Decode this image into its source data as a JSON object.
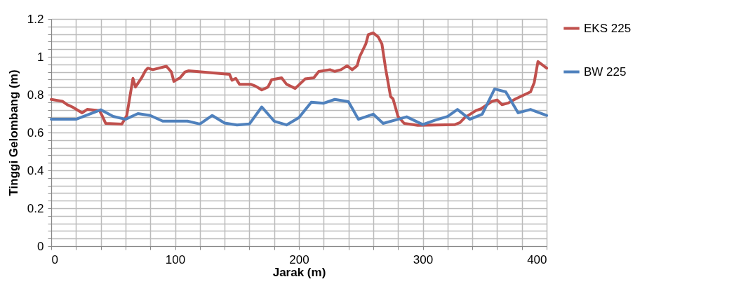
{
  "chart_data": {
    "type": "line",
    "xlabel": "Jarak (m)",
    "ylabel": "Tinggi Gelombang (m)",
    "xlim": [
      0,
      400
    ],
    "ylim": [
      0,
      1.2
    ],
    "xticks": [
      0,
      {
        "value": 20,
        "label": null
      },
      {
        "value": 40,
        "label": null
      },
      {
        "value": 60,
        "label": null
      },
      {
        "value": 80,
        "label": null
      },
      100,
      {
        "value": 120,
        "label": null
      },
      {
        "value": 140,
        "label": null
      },
      {
        "value": 160,
        "label": null
      },
      {
        "value": 180,
        "label": null
      },
      200,
      {
        "value": 220,
        "label": null
      },
      {
        "value": 240,
        "label": null
      },
      {
        "value": 260,
        "label": null
      },
      {
        "value": 280,
        "label": null
      },
      300,
      {
        "value": 320,
        "label": null
      },
      {
        "value": 340,
        "label": null
      },
      {
        "value": 360,
        "label": null
      },
      {
        "value": 380,
        "label": null
      },
      400
    ],
    "yticks": [
      0,
      {
        "value": 0.04,
        "label": null
      },
      {
        "value": 0.08,
        "label": null
      },
      {
        "value": 0.12,
        "label": null
      },
      {
        "value": 0.16,
        "label": null
      },
      0.2,
      {
        "value": 0.24,
        "label": null
      },
      {
        "value": 0.28,
        "label": null
      },
      {
        "value": 0.32,
        "label": null
      },
      {
        "value": 0.36,
        "label": null
      },
      0.4,
      {
        "value": 0.44,
        "label": null
      },
      {
        "value": 0.48,
        "label": null
      },
      {
        "value": 0.52,
        "label": null
      },
      {
        "value": 0.56,
        "label": null
      },
      0.6,
      {
        "value": 0.64,
        "label": null
      },
      {
        "value": 0.68,
        "label": null
      },
      {
        "value": 0.72,
        "label": null
      },
      {
        "value": 0.76,
        "label": null
      },
      0.8,
      {
        "value": 0.84,
        "label": null
      },
      {
        "value": 0.88,
        "label": null
      },
      {
        "value": 0.92,
        "label": null
      },
      {
        "value": 0.96,
        "label": null
      },
      1,
      {
        "value": 1.04,
        "label": null
      },
      {
        "value": 1.08,
        "label": null
      },
      {
        "value": 1.12,
        "label": null
      },
      {
        "value": 1.16,
        "label": null
      },
      1.2
    ],
    "grid": true,
    "legend": "right",
    "marker": "none",
    "line_style": "solid",
    "series": [
      {
        "name": "EKS 225",
        "color": "#c0504d",
        "x": [
          0,
          9,
          13,
          17,
          25,
          29,
          39,
          41,
          44,
          57,
          61,
          66,
          68,
          73,
          76,
          78,
          82,
          93,
          97,
          99,
          104,
          108,
          111,
          144,
          146,
          149,
          152,
          161,
          165,
          170,
          175,
          178,
          186,
          190,
          197,
          205,
          212,
          216,
          225,
          229,
          234,
          239,
          243,
          247,
          249,
          254,
          256,
          260,
          264,
          267,
          270,
          274,
          276,
          280,
          285,
          296,
          326,
          330,
          334,
          343,
          347,
          356,
          360,
          364,
          369,
          375,
          387,
          390,
          393,
          400
        ],
        "values": [
          0.775,
          0.765,
          0.747,
          0.735,
          0.704,
          0.722,
          0.716,
          0.69,
          0.648,
          0.644,
          0.69,
          0.886,
          0.84,
          0.889,
          0.926,
          0.94,
          0.932,
          0.95,
          0.92,
          0.87,
          0.889,
          0.92,
          0.926,
          0.907,
          0.876,
          0.886,
          0.855,
          0.855,
          0.845,
          0.825,
          0.84,
          0.879,
          0.889,
          0.855,
          0.833,
          0.883,
          0.889,
          0.922,
          0.932,
          0.923,
          0.932,
          0.953,
          0.932,
          0.953,
          1.0,
          1.068,
          1.117,
          1.126,
          1.105,
          1.068,
          0.938,
          0.79,
          0.778,
          0.685,
          0.648,
          0.638,
          0.642,
          0.652,
          0.679,
          0.716,
          0.725,
          0.765,
          0.772,
          0.747,
          0.756,
          0.778,
          0.815,
          0.864,
          0.975,
          0.94
        ]
      },
      {
        "name": "BW 225",
        "color": "#4f81bd",
        "x": [
          0,
          20,
          40,
          50,
          60,
          70,
          80,
          90,
          110,
          120,
          130,
          140,
          150,
          160,
          170,
          180,
          190,
          200,
          210,
          220,
          229,
          240,
          248,
          260,
          268,
          280,
          287,
          300,
          310,
          320,
          328,
          338,
          348,
          358,
          367,
          377,
          387,
          400
        ],
        "values": [
          0.67,
          0.67,
          0.72,
          0.685,
          0.67,
          0.7,
          0.69,
          0.66,
          0.66,
          0.645,
          0.69,
          0.65,
          0.64,
          0.645,
          0.735,
          0.66,
          0.64,
          0.679,
          0.76,
          0.755,
          0.775,
          0.763,
          0.67,
          0.697,
          0.648,
          0.67,
          0.683,
          0.642,
          0.665,
          0.685,
          0.722,
          0.67,
          0.697,
          0.83,
          0.815,
          0.704,
          0.722,
          0.69
        ]
      }
    ]
  }
}
